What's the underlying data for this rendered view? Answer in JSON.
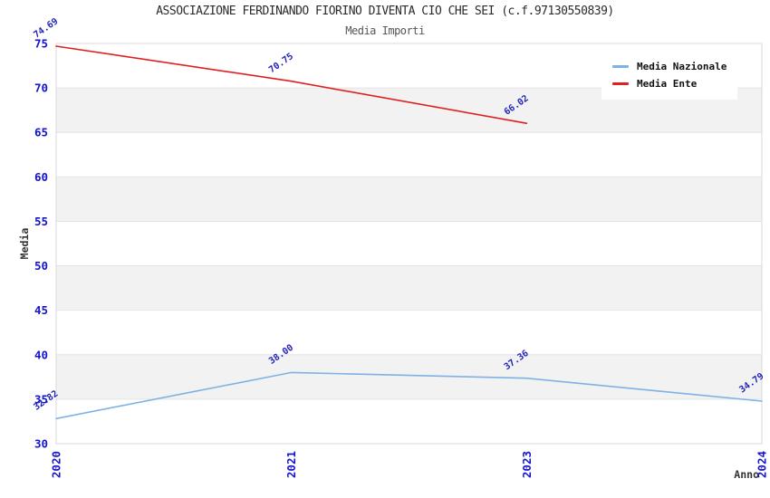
{
  "header": {
    "title": "ASSOCIAZIONE FERDINANDO FIORINO DIVENTA CIO CHE SEI (c.f.97130550839)",
    "subtitle": "Media Importi"
  },
  "chart_data": {
    "type": "line",
    "title": "ASSOCIAZIONE FERDINANDO FIORINO DIVENTA CIO CHE SEI (c.f.97130550839)",
    "subtitle": "Media Importi",
    "xlabel": "Anno",
    "ylabel": "Media",
    "categories": [
      "2020",
      "2021",
      "2023",
      "2024"
    ],
    "series": [
      {
        "name": "Media Nazionale",
        "color": "#7EB2E4",
        "values": [
          32.82,
          38.0,
          37.36,
          34.79
        ]
      },
      {
        "name": "Media Ente",
        "color": "#E02020",
        "values": [
          74.69,
          70.75,
          66.02,
          null
        ]
      }
    ],
    "ylim": [
      30,
      75
    ],
    "ytick_step": 5,
    "grid": "horizontal-bands",
    "legend_position": "top-right",
    "band_fill": "#f2f2f2",
    "grid_line_color": "#e4e4e4",
    "border_color": "#d9d9d9",
    "tick_color": "#1414cc",
    "data_label_color": "#2323bb",
    "value_decimals": 2
  }
}
